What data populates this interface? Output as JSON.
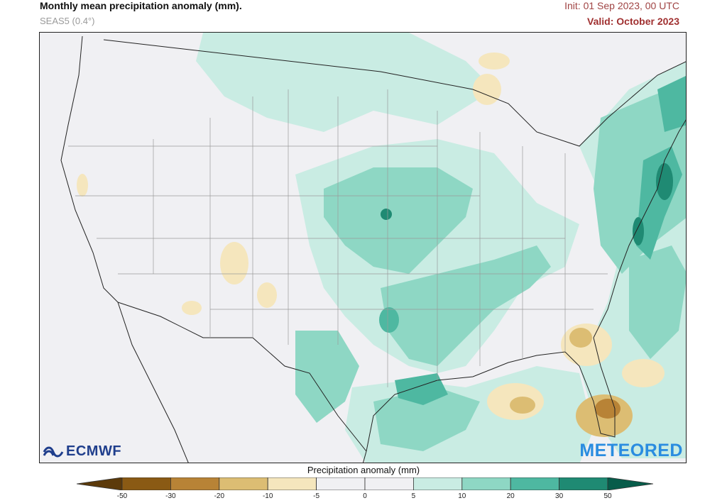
{
  "header": {
    "title": "Monthly mean precipitation anomaly (mm).",
    "subtitle": "SEAS5 (0.4°)",
    "init": "Init: 01 Sep 2023, 00 UTC",
    "valid": "Valid: October 2023"
  },
  "logos": {
    "left": "ECMWF",
    "right": "METEORED"
  },
  "colorbar": {
    "title": "Precipitation anomaly (mm)",
    "ticks": [
      "-50",
      "-30",
      "-20",
      "-10",
      "-5",
      "0",
      "5",
      "10",
      "20",
      "30",
      "50"
    ],
    "colors": [
      "#5c3a0a",
      "#8a5a14",
      "#b88336",
      "#dcbd73",
      "#f5e6bd",
      "#f0f0f3",
      "#f0f0f3",
      "#c9ece3",
      "#8ed7c4",
      "#4eb8a1",
      "#1f8a73",
      "#075c4a"
    ]
  },
  "legend_colors": {
    "background": "#f0f0f3",
    "wet_light": "#c9ece3",
    "wet_mid": "#8ed7c4",
    "wet_strong": "#4eb8a1",
    "wet_dark": "#1f8a73",
    "dry_light": "#f5e6bd",
    "dry_mid": "#dcbd73",
    "dry_strong": "#b88336"
  }
}
